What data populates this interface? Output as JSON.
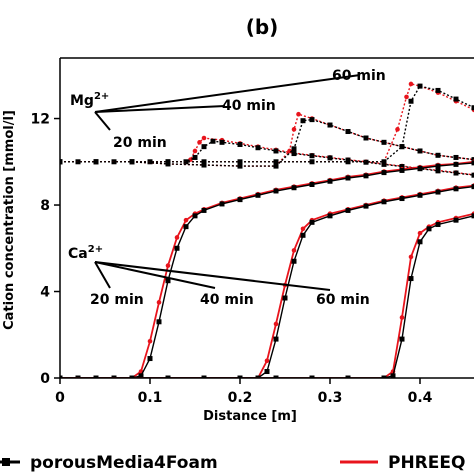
{
  "chart_data": {
    "type": "line",
    "title": "(b)",
    "xlabel": "Distance [m]",
    "ylabel": "Cation concentration [mmol/l]",
    "xlim": [
      0,
      0.46
    ],
    "ylim": [
      0,
      14.8
    ],
    "xticks": [
      0,
      0.1,
      0.2,
      0.3,
      0.4
    ],
    "xtick_labels": [
      "0",
      "0.1",
      "0.2",
      "0.3",
      "0.4"
    ],
    "yticks": [
      0,
      4,
      8,
      12
    ],
    "ytick_labels": [
      "0",
      "4",
      "8",
      "12"
    ],
    "grid": false,
    "legend": [
      {
        "name": "porousMedia4Foam",
        "color": "#000000",
        "marker": "square"
      },
      {
        "name": "PHREEQ",
        "color": "#e8141c",
        "marker": "circle"
      }
    ],
    "annotations": {
      "mg_label": "Mg",
      "mg_sup": "2+",
      "ca_label": "Ca",
      "ca_sup": "2+",
      "mg_times": [
        "20 min",
        "40 min",
        "60 min"
      ],
      "ca_times": [
        "20 min",
        "40 min",
        "60 min"
      ]
    },
    "series": [
      {
        "name": "Mg 20 min PHREEQ",
        "color": "#e8141c",
        "style": "dotted",
        "x": [
          0,
          0.02,
          0.04,
          0.06,
          0.08,
          0.1,
          0.12,
          0.14,
          0.145,
          0.15,
          0.155,
          0.16,
          0.18,
          0.2,
          0.22,
          0.24,
          0.26,
          0.28,
          0.3,
          0.32,
          0.34,
          0.36,
          0.38,
          0.4,
          0.42,
          0.44,
          0.46
        ],
        "y": [
          10,
          10,
          10,
          10,
          10,
          10,
          10,
          10,
          10.1,
          10.5,
          10.9,
          11.1,
          11.0,
          10.85,
          10.7,
          10.55,
          10.4,
          10.3,
          10.2,
          10.1,
          10.0,
          9.9,
          9.8,
          9.7,
          9.6,
          9.5,
          9.4
        ]
      },
      {
        "name": "Mg 20 min porousMedia4Foam",
        "color": "#000000",
        "style": "dotted",
        "x": [
          0,
          0.02,
          0.04,
          0.06,
          0.08,
          0.1,
          0.12,
          0.14,
          0.15,
          0.16,
          0.17,
          0.18,
          0.2,
          0.22,
          0.24,
          0.26,
          0.28,
          0.3,
          0.32,
          0.34,
          0.36,
          0.38,
          0.4,
          0.42,
          0.44,
          0.46
        ],
        "y": [
          10,
          10,
          10,
          10,
          10,
          10,
          10,
          10,
          10.2,
          10.7,
          10.95,
          10.9,
          10.8,
          10.65,
          10.5,
          10.38,
          10.28,
          10.18,
          10.08,
          9.98,
          9.88,
          9.78,
          9.68,
          9.58,
          9.48,
          9.38
        ]
      },
      {
        "name": "Mg 40 min PHREEQ",
        "color": "#e8141c",
        "style": "dotted",
        "x": [
          0,
          0.04,
          0.08,
          0.12,
          0.16,
          0.2,
          0.24,
          0.255,
          0.26,
          0.265,
          0.28,
          0.3,
          0.32,
          0.34,
          0.36,
          0.38,
          0.4,
          0.42,
          0.44,
          0.46
        ],
        "y": [
          10,
          10,
          10,
          9.9,
          9.85,
          9.8,
          9.8,
          10.5,
          11.5,
          12.2,
          12.0,
          11.7,
          11.4,
          11.1,
          10.9,
          10.7,
          10.5,
          10.3,
          10.2,
          10.1
        ]
      },
      {
        "name": "Mg 40 min porousMedia4Foam",
        "color": "#000000",
        "style": "dotted",
        "x": [
          0,
          0.04,
          0.08,
          0.12,
          0.16,
          0.2,
          0.24,
          0.26,
          0.27,
          0.28,
          0.3,
          0.32,
          0.34,
          0.36,
          0.38,
          0.4,
          0.42,
          0.44,
          0.46
        ],
        "y": [
          10,
          10,
          10,
          9.9,
          9.85,
          9.8,
          9.8,
          10.6,
          11.9,
          11.95,
          11.7,
          11.4,
          11.1,
          10.9,
          10.7,
          10.5,
          10.3,
          10.2,
          10.1
        ]
      },
      {
        "name": "Mg 60 min PHREEQ",
        "color": "#e8141c",
        "style": "dotted",
        "x": [
          0,
          0.04,
          0.08,
          0.12,
          0.16,
          0.2,
          0.24,
          0.28,
          0.32,
          0.36,
          0.375,
          0.385,
          0.39,
          0.4,
          0.42,
          0.44,
          0.46
        ],
        "y": [
          10,
          10,
          10,
          10,
          10,
          10,
          10,
          10,
          10,
          10,
          11.5,
          13.0,
          13.6,
          13.5,
          13.2,
          12.8,
          12.4
        ]
      },
      {
        "name": "Mg 60 min porousMedia4Foam",
        "color": "#000000",
        "style": "dotted",
        "x": [
          0,
          0.04,
          0.08,
          0.12,
          0.16,
          0.2,
          0.24,
          0.28,
          0.32,
          0.36,
          0.38,
          0.39,
          0.4,
          0.42,
          0.44,
          0.46
        ],
        "y": [
          10,
          10,
          10,
          10,
          10,
          10,
          10,
          10,
          10,
          10,
          10.7,
          12.8,
          13.5,
          13.3,
          12.9,
          12.5
        ]
      },
      {
        "name": "Ca 20 min PHREEQ",
        "color": "#e8141c",
        "style": "solid",
        "x": [
          0,
          0.02,
          0.04,
          0.06,
          0.08,
          0.09,
          0.1,
          0.11,
          0.12,
          0.13,
          0.14,
          0.15,
          0.16,
          0.18,
          0.2,
          0.22,
          0.24,
          0.26,
          0.28,
          0.3,
          0.32,
          0.34,
          0.36,
          0.38,
          0.4,
          0.42,
          0.44,
          0.46
        ],
        "y": [
          0,
          0,
          0,
          0,
          0,
          0.3,
          1.7,
          3.5,
          5.2,
          6.5,
          7.3,
          7.6,
          7.8,
          8.1,
          8.3,
          8.5,
          8.7,
          8.85,
          9.0,
          9.15,
          9.3,
          9.4,
          9.55,
          9.65,
          9.75,
          9.85,
          9.9,
          10.0
        ]
      },
      {
        "name": "Ca 20 min porousMedia4Foam",
        "color": "#000000",
        "style": "solid",
        "x": [
          0,
          0.02,
          0.04,
          0.06,
          0.08,
          0.09,
          0.1,
          0.11,
          0.12,
          0.13,
          0.14,
          0.15,
          0.16,
          0.18,
          0.2,
          0.22,
          0.24,
          0.26,
          0.28,
          0.3,
          0.32,
          0.34,
          0.36,
          0.38,
          0.4,
          0.42,
          0.44,
          0.46
        ],
        "y": [
          0,
          0,
          0,
          0,
          0,
          0.1,
          0.9,
          2.6,
          4.5,
          6.0,
          7.0,
          7.5,
          7.75,
          8.05,
          8.25,
          8.45,
          8.65,
          8.8,
          8.95,
          9.1,
          9.25,
          9.35,
          9.5,
          9.6,
          9.7,
          9.8,
          9.88,
          9.95
        ]
      },
      {
        "name": "Ca 40 min PHREEQ",
        "color": "#e8141c",
        "style": "solid",
        "x": [
          0,
          0.04,
          0.08,
          0.12,
          0.16,
          0.2,
          0.22,
          0.23,
          0.24,
          0.25,
          0.26,
          0.27,
          0.28,
          0.3,
          0.32,
          0.34,
          0.36,
          0.38,
          0.4,
          0.42,
          0.44,
          0.46
        ],
        "y": [
          0,
          0,
          0,
          0,
          0,
          0,
          0,
          0.8,
          2.5,
          4.3,
          5.9,
          6.9,
          7.3,
          7.6,
          7.8,
          8.0,
          8.2,
          8.35,
          8.5,
          8.65,
          8.8,
          8.9
        ]
      },
      {
        "name": "Ca 40 min porousMedia4Foam",
        "color": "#000000",
        "style": "solid",
        "x": [
          0,
          0.04,
          0.08,
          0.12,
          0.16,
          0.2,
          0.22,
          0.23,
          0.24,
          0.25,
          0.26,
          0.27,
          0.28,
          0.3,
          0.32,
          0.34,
          0.36,
          0.38,
          0.4,
          0.42,
          0.44,
          0.46
        ],
        "y": [
          0,
          0,
          0,
          0,
          0,
          0,
          0,
          0.3,
          1.8,
          3.7,
          5.4,
          6.6,
          7.2,
          7.5,
          7.75,
          7.95,
          8.15,
          8.3,
          8.45,
          8.6,
          8.75,
          8.85
        ]
      },
      {
        "name": "Ca 60 min PHREEQ",
        "color": "#e8141c",
        "style": "solid",
        "x": [
          0,
          0.04,
          0.08,
          0.12,
          0.16,
          0.2,
          0.24,
          0.28,
          0.32,
          0.36,
          0.37,
          0.38,
          0.39,
          0.4,
          0.41,
          0.42,
          0.44,
          0.46
        ],
        "y": [
          0,
          0,
          0,
          0,
          0,
          0,
          0,
          0,
          0,
          0,
          0.3,
          2.8,
          5.6,
          6.7,
          7.0,
          7.2,
          7.4,
          7.6
        ]
      },
      {
        "name": "Ca 60 min porousMedia4Foam",
        "color": "#000000",
        "style": "solid",
        "x": [
          0,
          0.04,
          0.08,
          0.12,
          0.16,
          0.2,
          0.24,
          0.28,
          0.32,
          0.36,
          0.37,
          0.38,
          0.39,
          0.4,
          0.41,
          0.42,
          0.44,
          0.46
        ],
        "y": [
          0,
          0,
          0,
          0,
          0,
          0,
          0,
          0,
          0,
          0,
          0.1,
          1.8,
          4.6,
          6.3,
          6.9,
          7.1,
          7.3,
          7.5
        ]
      }
    ]
  }
}
